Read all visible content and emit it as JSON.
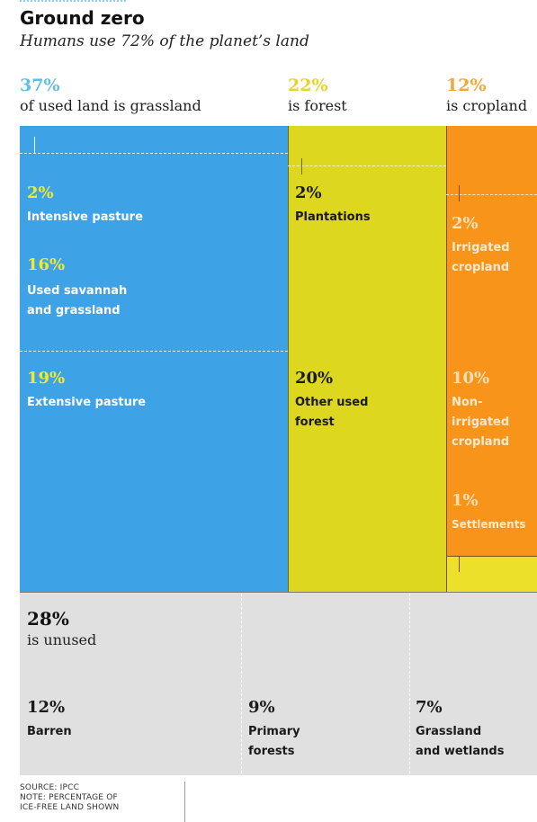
{
  "header": {
    "title": "Ground zero",
    "subtitle": "Humans use 72% of the planet’s land"
  },
  "colors": {
    "grassland": "#3da3e6",
    "forest": "#ddd71f",
    "cropland": "#f9941a",
    "settlements": "#ede02b",
    "unused": "#e0e0e0",
    "grassland_pct_text": "#5fbde6",
    "forest_pct_text": "#e3d52a",
    "cropland_pct_text": "#f5a638"
  },
  "chart_data": {
    "type": "treemap",
    "title": "Ground zero",
    "subtitle": "Humans use 72% of the planet’s land",
    "unit": "percent of ice-free land",
    "groups": [
      {
        "key": "grassland",
        "pct_label": "37%",
        "label": "of used land is grassland",
        "value": 37,
        "items": [
          {
            "pct_label": "2%",
            "label": [
              "Intensive pasture"
            ],
            "value": 2
          },
          {
            "pct_label": "16%",
            "label": [
              "Used savannah",
              "and grassland"
            ],
            "value": 16
          },
          {
            "pct_label": "19%",
            "label": [
              "Extensive pasture"
            ],
            "value": 19
          }
        ]
      },
      {
        "key": "forest",
        "pct_label": "22%",
        "label": "is forest",
        "value": 22,
        "items": [
          {
            "pct_label": "2%",
            "label": [
              "Plantations"
            ],
            "value": 2
          },
          {
            "pct_label": "20%",
            "label": [
              "Other used",
              "forest"
            ],
            "value": 20
          }
        ]
      },
      {
        "key": "cropland",
        "pct_label": "12%",
        "label": "is cropland",
        "value": 12,
        "items": [
          {
            "pct_label": "2%",
            "label": [
              "Irrigated",
              "cropland"
            ],
            "value": 2
          },
          {
            "pct_label": "10%",
            "label": [
              "Non-",
              "irrigated",
              "cropland"
            ],
            "value": 10
          },
          {
            "pct_label": "1%",
            "label": [
              "Settlements"
            ],
            "value": 1
          }
        ]
      },
      {
        "key": "unused",
        "pct_label": "28%",
        "label": "is unused",
        "value": 28,
        "items": [
          {
            "pct_label": "12%",
            "label": [
              "Barren"
            ],
            "value": 12
          },
          {
            "pct_label": "9%",
            "label": [
              "Primary",
              "forests"
            ],
            "value": 9
          },
          {
            "pct_label": "7%",
            "label": [
              "Grassland",
              "and wetlands"
            ],
            "value": 7
          }
        ]
      }
    ]
  },
  "footer": {
    "lines": [
      "SOURCE: IPCC",
      "NOTE: PERCENTAGE OF",
      "ICE-FREE LAND SHOWN"
    ]
  }
}
